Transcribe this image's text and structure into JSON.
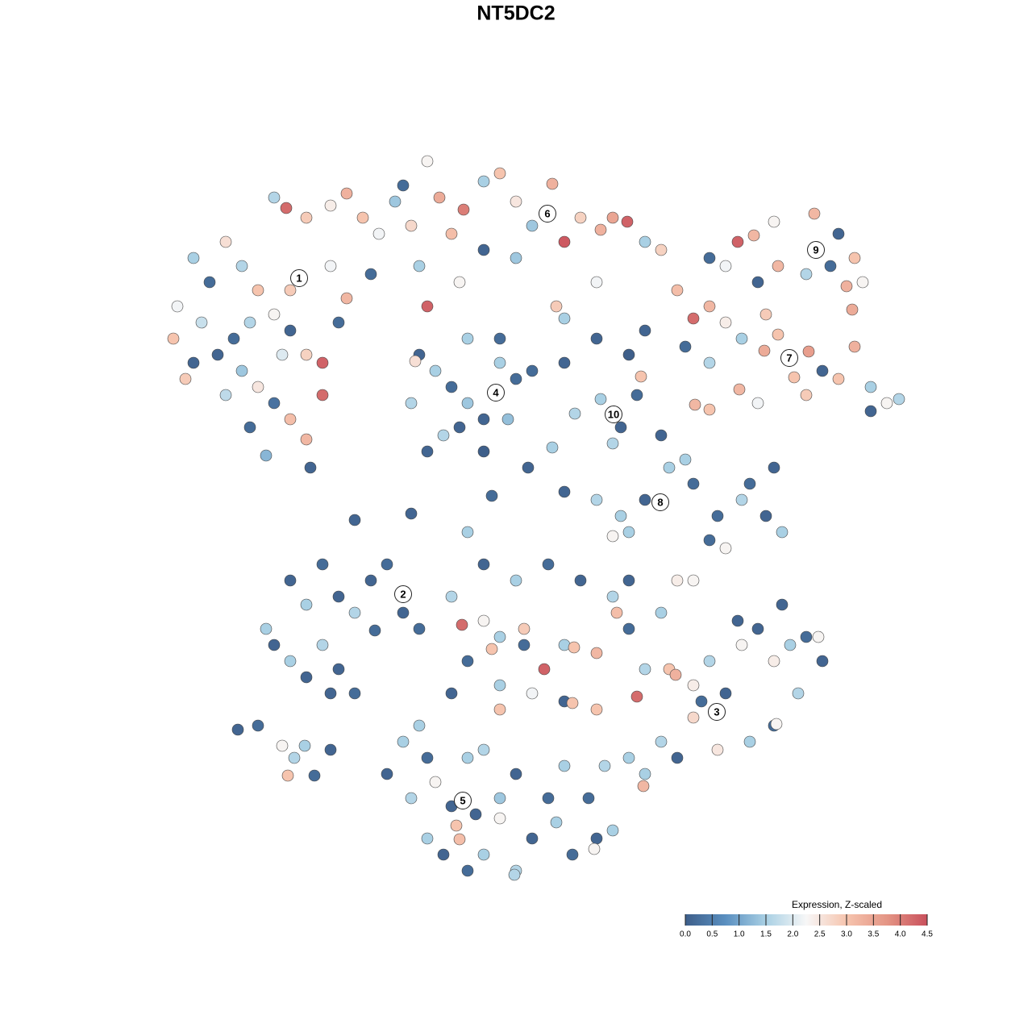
{
  "chart_data": {
    "type": "scatter",
    "title": "NT5DC2",
    "xlim": [
      0,
      128
    ],
    "ylim": [
      0,
      128
    ],
    "x": [
      22,
      24,
      26,
      28,
      30,
      32,
      34,
      36,
      38,
      40,
      30,
      32,
      34,
      36,
      38,
      33,
      29,
      25,
      21.5,
      27,
      41,
      43,
      42,
      40,
      35,
      31,
      36,
      24,
      28,
      31,
      23,
      38.5,
      34,
      35.5,
      38,
      41,
      43,
      45,
      47,
      49,
      51,
      53,
      54.5,
      56,
      57.5,
      60,
      62,
      64,
      66,
      68.5,
      70,
      72,
      74.5,
      76,
      77.8,
      80,
      82,
      64,
      60,
      50,
      46,
      52,
      53,
      57,
      69,
      70,
      74,
      52,
      54,
      56,
      58,
      60,
      62,
      64,
      55,
      53,
      60,
      62,
      58,
      51.5,
      51,
      63,
      57,
      66,
      70,
      74,
      78,
      74.5,
      77,
      76,
      79,
      71.3,
      79.5,
      88,
      91.5,
      93.5,
      96,
      101,
      104,
      106,
      96.5,
      100,
      103,
      94,
      107,
      105.7,
      105,
      90,
      84,
      86,
      88,
      90,
      92,
      95,
      94.8,
      96.5,
      100.3,
      102,
      104,
      106,
      108,
      110,
      111.5,
      100,
      98.5,
      88,
      85,
      80,
      91.7,
      86.2,
      88,
      94,
      108,
      82,
      85,
      86,
      80,
      77,
      89,
      92,
      95,
      97,
      90,
      93,
      96,
      88,
      83,
      74,
      70,
      76,
      78,
      44,
      51,
      58,
      61,
      65.5,
      68.5,
      36,
      38,
      40,
      42,
      44,
      46,
      48,
      50,
      52,
      34,
      36,
      38,
      40,
      42,
      44,
      33,
      46.5,
      41,
      29.5,
      32,
      35,
      37.8,
      35.7,
      36.5,
      41,
      39,
      57.3,
      60,
      62,
      61,
      65,
      67.5,
      70,
      71.2,
      74,
      76.5,
      78,
      76,
      72,
      68,
      64,
      60,
      56,
      58,
      62,
      66,
      70,
      71,
      74,
      79,
      80,
      82,
      84,
      86,
      56,
      52,
      62,
      65,
      78,
      83,
      86,
      88,
      90,
      92,
      94,
      96,
      98,
      100,
      101.5,
      102,
      99,
      96,
      93,
      89,
      86,
      84,
      82,
      80,
      79.8,
      78,
      96.3,
      87,
      91.5,
      97,
      83.8,
      50,
      48,
      51,
      54,
      56,
      56.6,
      57,
      53,
      55,
      58,
      60,
      62,
      64,
      66,
      69,
      71,
      74,
      73.7,
      76,
      60,
      64,
      68,
      70,
      62,
      59,
      63.8,
      53,
      58,
      75,
      73
    ],
    "y": [
      90,
      96,
      93,
      98,
      95,
      92,
      89,
      87,
      84,
      83,
      82,
      80,
      78,
      76,
      73.5,
      71.5,
      86,
      88,
      86,
      84,
      95,
      91,
      88,
      79,
      84,
      88,
      92,
      83,
      79,
      75,
      81,
      70,
      103.5,
      102.2,
      101,
      102.5,
      104,
      101,
      99,
      103,
      100,
      108,
      103.5,
      99,
      102,
      105.5,
      106.5,
      103,
      100,
      105.2,
      98,
      101,
      99.5,
      101,
      100.5,
      98,
      97,
      96,
      97,
      105,
      94,
      95,
      90,
      93,
      90,
      88.5,
      93,
      84,
      82,
      80,
      78,
      76,
      83,
      81,
      74,
      72,
      72,
      86,
      86,
      83.2,
      78,
      76,
      75,
      82,
      83,
      86,
      84,
      78.5,
      75,
      73,
      79,
      76.7,
      81.3,
      96,
      98,
      98.8,
      100.5,
      101.5,
      99,
      96,
      95,
      94,
      95,
      93,
      93,
      89.6,
      92.5,
      95,
      92,
      88.5,
      90,
      88,
      86,
      89,
      84.5,
      86.5,
      84.4,
      82,
      81,
      85,
      80,
      78,
      78.5,
      79,
      81.2,
      83,
      85,
      87,
      79.7,
      77.8,
      77.2,
      78,
      77,
      74,
      71,
      68,
      66,
      64,
      64,
      66,
      64,
      62,
      60,
      68,
      70,
      61,
      70,
      66,
      67,
      61.5,
      62,
      63.5,
      64.3,
      62,
      66.5,
      70,
      72.5,
      56,
      53,
      58,
      54,
      52,
      56,
      58,
      52,
      50,
      48,
      46,
      44,
      48,
      45,
      42,
      50,
      49.8,
      42,
      37.5,
      38,
      35.5,
      35.5,
      31.8,
      34,
      35,
      31.8,
      50.5,
      51,
      49,
      47.5,
      50,
      45,
      48,
      47.7,
      47,
      52,
      50,
      54,
      56,
      58,
      56,
      58,
      54,
      46,
      43,
      42,
      41,
      40.8,
      40,
      41.6,
      45,
      52,
      56,
      56,
      42,
      38,
      40,
      48,
      56,
      45,
      43,
      46,
      42,
      48,
      50,
      46,
      48,
      49,
      49,
      46,
      42,
      38,
      36,
      35,
      39,
      34,
      36,
      32,
      30.5,
      34,
      38.2,
      41,
      51,
      53,
      44.3,
      36,
      32,
      29,
      31,
      28,
      25.6,
      23.9,
      24,
      22,
      20,
      22,
      26.5,
      20,
      24,
      26,
      22,
      24,
      22.7,
      25,
      35,
      32,
      29,
      33,
      29,
      27,
      19.5,
      34,
      34,
      33,
      29
    ],
    "values": [
      2.2,
      1.5,
      0.2,
      2.6,
      1.6,
      3.0,
      2.3,
      0.1,
      2.8,
      4.3,
      1.4,
      2.5,
      0.3,
      3.1,
      3.2,
      1.2,
      0.2,
      1.8,
      3.0,
      0.1,
      2.2,
      3.2,
      0.2,
      4.2,
      2.0,
      1.6,
      2.9,
      0.1,
      1.7,
      0.2,
      2.9,
      0.1,
      1.6,
      4.2,
      2.9,
      2.4,
      3.3,
      3.0,
      2.2,
      1.4,
      2.7,
      2.3,
      3.4,
      3.1,
      4.0,
      1.5,
      3.0,
      2.5,
      1.4,
      3.3,
      4.4,
      2.8,
      3.3,
      3.5,
      4.3,
      1.5,
      2.8,
      1.4,
      0.1,
      0.2,
      0.2,
      1.5,
      4.3,
      2.3,
      2.9,
      1.5,
      2.2,
      0.1,
      1.5,
      0.2,
      1.4,
      0.1,
      1.5,
      0.2,
      1.6,
      0.1,
      0.0,
      0.2,
      1.5,
      2.6,
      1.6,
      1.3,
      0.1,
      0.2,
      0.1,
      0.1,
      0.0,
      1.5,
      0.1,
      1.6,
      0.2,
      1.6,
      3.0,
      0.2,
      4.3,
      3.2,
      2.3,
      3.2,
      0.1,
      3.0,
      3.2,
      1.6,
      0.2,
      0.1,
      2.3,
      3.4,
      3.3,
      2.2,
      3.1,
      4.2,
      3.2,
      2.4,
      1.5,
      2.9,
      3.4,
      3.0,
      3.6,
      0.1,
      3.0,
      3.3,
      1.5,
      2.3,
      1.6,
      2.9,
      3.0,
      1.6,
      0.2,
      0.1,
      3.2,
      3.2,
      3.0,
      2.2,
      0.1,
      0.1,
      1.5,
      0.2,
      0.1,
      1.5,
      0.2,
      1.6,
      0.1,
      1.5,
      2.3,
      0.2,
      0.1,
      0.2,
      1.5,
      1.6,
      0.1,
      2.3,
      1.5,
      0.1,
      0.1,
      1.5,
      0.2,
      0.1,
      1.5,
      0.1,
      1.5,
      0.2,
      0.1,
      1.6,
      0.1,
      0.2,
      0.1,
      0.2,
      0.1,
      1.5,
      0.1,
      1.6,
      0.1,
      0.2,
      1.5,
      0.2,
      0.1,
      0.1,
      0.2,
      2.3,
      1.5,
      3.0,
      1.6,
      0.1,
      0.2,
      4.2,
      2.3,
      1.5,
      3.0,
      2.9,
      4.3,
      1.5,
      3.0,
      3.2,
      3.1,
      0.2,
      1.6,
      0.1,
      0.2,
      1.5,
      0.1,
      1.6,
      0.2,
      1.5,
      2.2,
      0.1,
      3.0,
      3.0,
      4.2,
      1.6,
      1.5,
      2.4,
      2.3,
      0.1,
      1.5,
      3.0,
      0.2,
      0.1,
      3.0,
      2.4,
      1.6,
      0.1,
      2.3,
      0.1,
      2.4,
      1.5,
      0.2,
      2.3,
      0.1,
      1.6,
      0.2,
      1.5,
      2.5,
      2.7,
      0.1,
      1.6,
      1.5,
      3.2,
      1.5,
      2.3,
      0.2,
      0.1,
      0.1,
      3.3,
      1.5,
      0.1,
      1.6,
      2.3,
      0.1,
      3.0,
      3.1,
      1.5,
      0.1,
      0.2,
      1.5,
      2.3,
      1.6,
      0.1,
      1.5,
      0.2,
      0.1,
      2.3,
      1.5,
      1.6,
      0.1,
      0.2,
      1.5,
      1.4,
      0.1,
      1.6,
      0.2,
      1.5,
      1.6,
      0.2
    ],
    "labels": [
      {
        "text": "1",
        "x": 37.1,
        "y": 93.5
      },
      {
        "text": "2",
        "x": 50,
        "y": 54.3
      },
      {
        "text": "3",
        "x": 88.9,
        "y": 39.7
      },
      {
        "text": "4",
        "x": 61.5,
        "y": 79.3
      },
      {
        "text": "5",
        "x": 57.4,
        "y": 28.7
      },
      {
        "text": "6",
        "x": 67.9,
        "y": 101.5
      },
      {
        "text": "7",
        "x": 97.9,
        "y": 83.6
      },
      {
        "text": "8",
        "x": 81.9,
        "y": 65.7
      },
      {
        "text": "9",
        "x": 101.2,
        "y": 97
      },
      {
        "text": "10",
        "x": 76.1,
        "y": 76.6
      }
    ],
    "colorbar": {
      "title": "Expression, Z-scaled",
      "lim": [
        0,
        4.5
      ],
      "ticks": [
        {
          "value": 0,
          "label": "0.0"
        },
        0.5,
        {
          "value": 1,
          "label": "1.0"
        },
        1.5,
        {
          "value": 2,
          "label": "2.0"
        },
        2.5,
        {
          "value": 3,
          "label": "3.0"
        },
        3.5,
        {
          "value": 4,
          "label": "4.0"
        },
        4.5
      ],
      "colormap": [
        "#3e5f8a",
        "#5a8fc0",
        "#a9d0e4",
        "#f7f7f7",
        "#f6c4ae",
        "#e49585",
        "#c9505c"
      ]
    }
  }
}
